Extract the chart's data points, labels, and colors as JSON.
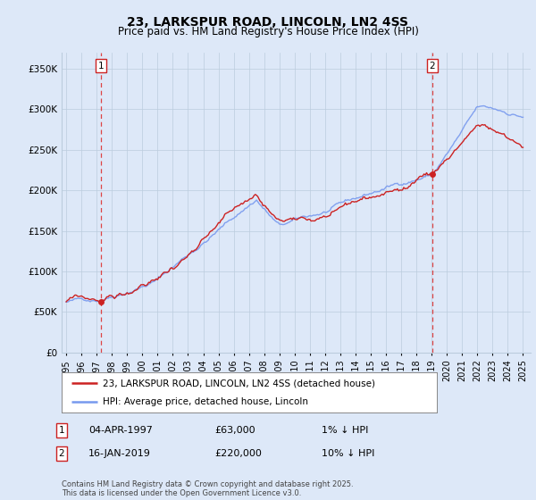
{
  "title": "23, LARKSPUR ROAD, LINCOLN, LN2 4SS",
  "subtitle": "Price paid vs. HM Land Registry's House Price Index (HPI)",
  "ylim": [
    0,
    370000
  ],
  "yticks": [
    0,
    50000,
    100000,
    150000,
    200000,
    250000,
    300000,
    350000
  ],
  "ytick_labels": [
    "£0",
    "£50K",
    "£100K",
    "£150K",
    "£200K",
    "£250K",
    "£300K",
    "£350K"
  ],
  "xlim_start": 1994.7,
  "xlim_end": 2025.5,
  "hpi_color": "#7799ee",
  "price_color": "#cc2222",
  "marker1_date": 1997.26,
  "marker1_value": 63000,
  "marker2_date": 2019.04,
  "marker2_value": 220000,
  "vline_color": "#dd4444",
  "legend_line1": "23, LARKSPUR ROAD, LINCOLN, LN2 4SS (detached house)",
  "legend_line2": "HPI: Average price, detached house, Lincoln",
  "annotation1_date": "04-APR-1997",
  "annotation1_price": "£63,000",
  "annotation1_hpi": "1% ↓ HPI",
  "annotation2_date": "16-JAN-2019",
  "annotation2_price": "£220,000",
  "annotation2_hpi": "10% ↓ HPI",
  "footnote": "Contains HM Land Registry data © Crown copyright and database right 2025.\nThis data is licensed under the Open Government Licence v3.0.",
  "bg_color": "#dde8f8",
  "plot_bg_color": "#dde8f8",
  "grid_color": "#bbccdd",
  "title_fontsize": 10,
  "subtitle_fontsize": 8.5,
  "xtick_years": [
    1995,
    1996,
    1997,
    1998,
    1999,
    2000,
    2001,
    2002,
    2003,
    2004,
    2005,
    2006,
    2007,
    2008,
    2009,
    2010,
    2011,
    2012,
    2013,
    2014,
    2015,
    2016,
    2017,
    2018,
    2019,
    2020,
    2021,
    2022,
    2023,
    2024,
    2025
  ]
}
